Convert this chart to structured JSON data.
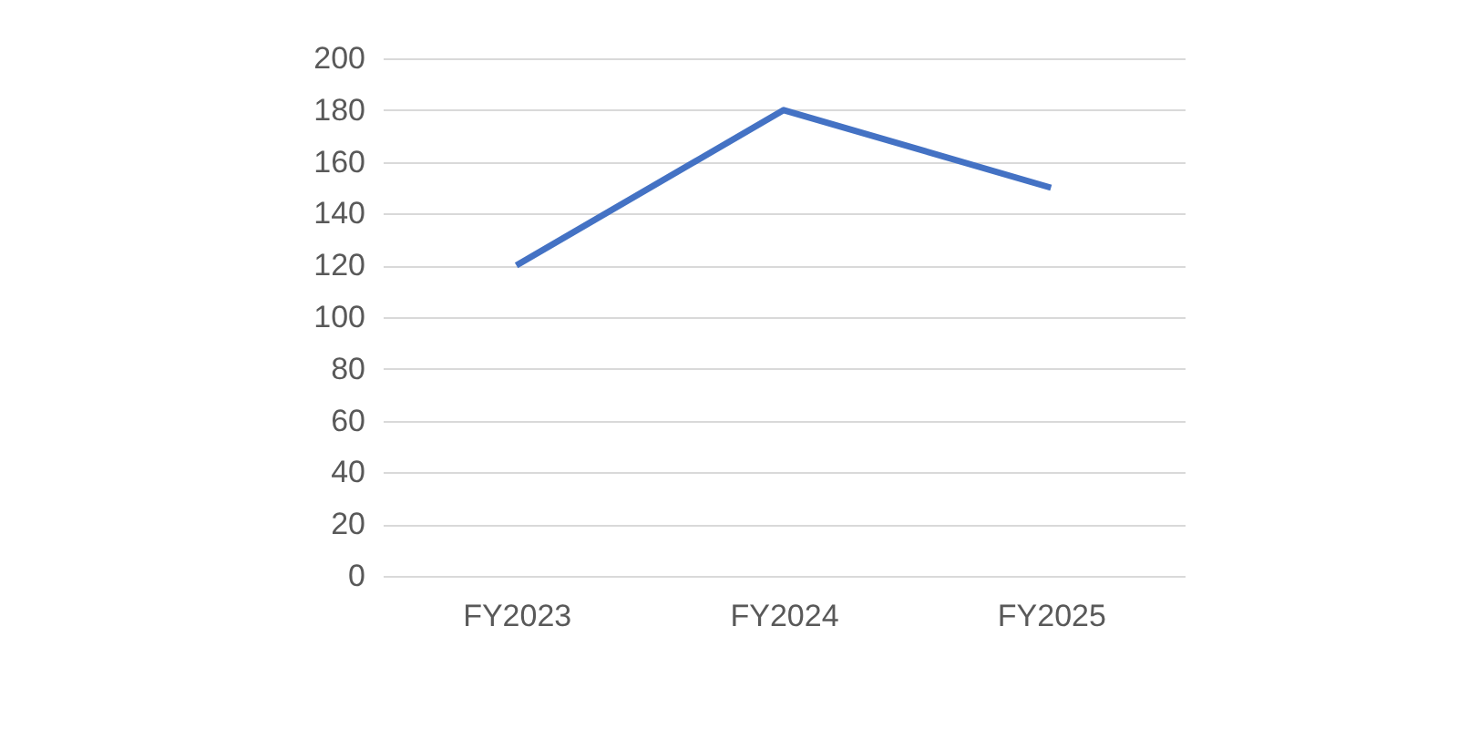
{
  "chart_data": {
    "type": "line",
    "categories": [
      "FY2023",
      "FY2024",
      "FY2025"
    ],
    "series": [
      {
        "color": "#4472c4",
        "values": [
          120,
          180,
          150
        ]
      }
    ],
    "ylim": [
      0,
      200
    ],
    "yticks": [
      0,
      20,
      40,
      60,
      80,
      100,
      120,
      140,
      160,
      180,
      200
    ],
    "grid": "y",
    "legend": false,
    "marker": "none",
    "line_style": "solid"
  }
}
